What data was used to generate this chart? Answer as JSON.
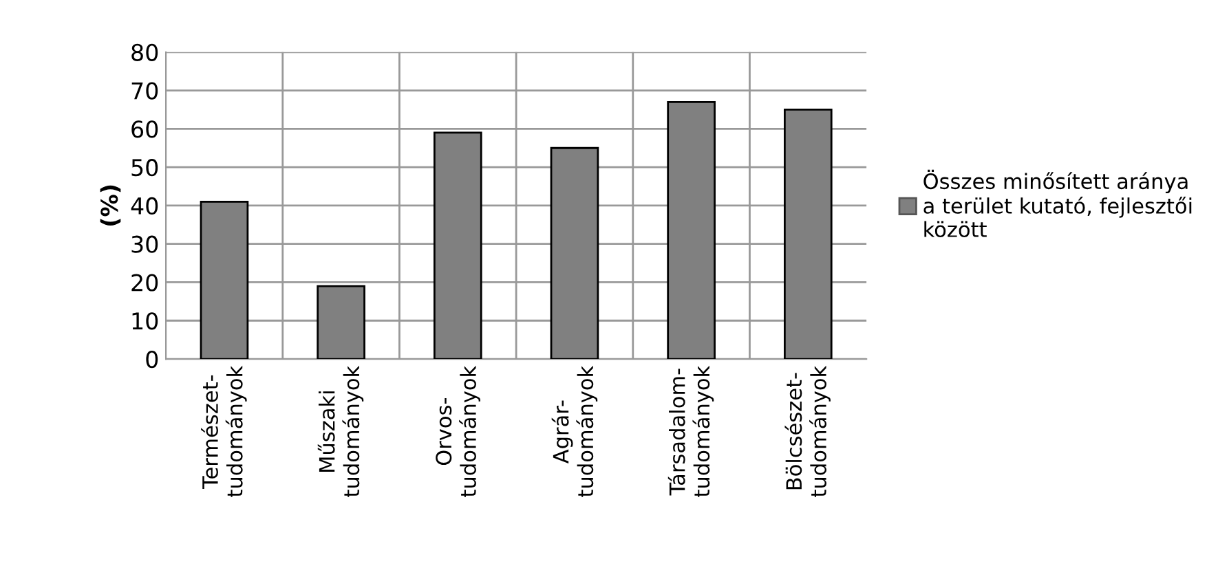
{
  "chart_data": {
    "type": "bar",
    "ylabel": "(%)",
    "categories": [
      "Természet-\ntudományok",
      "Műszaki\ntudományok",
      "Orvos-\ntudományok",
      "Agrár-\ntudományok",
      "Társadalom-\ntudományok",
      "Bölcsészet-\ntudományok"
    ],
    "series": [
      {
        "name": "Összes minősített aránya\na terület kutató, fejlesztői\nközött",
        "color": "#808080",
        "values": [
          41,
          19,
          59,
          55,
          67,
          65
        ]
      }
    ],
    "ylim": [
      0,
      80
    ],
    "yticks": [
      0,
      10,
      20,
      30,
      40,
      50,
      60,
      70,
      80
    ],
    "grid": true,
    "legend": "right"
  }
}
